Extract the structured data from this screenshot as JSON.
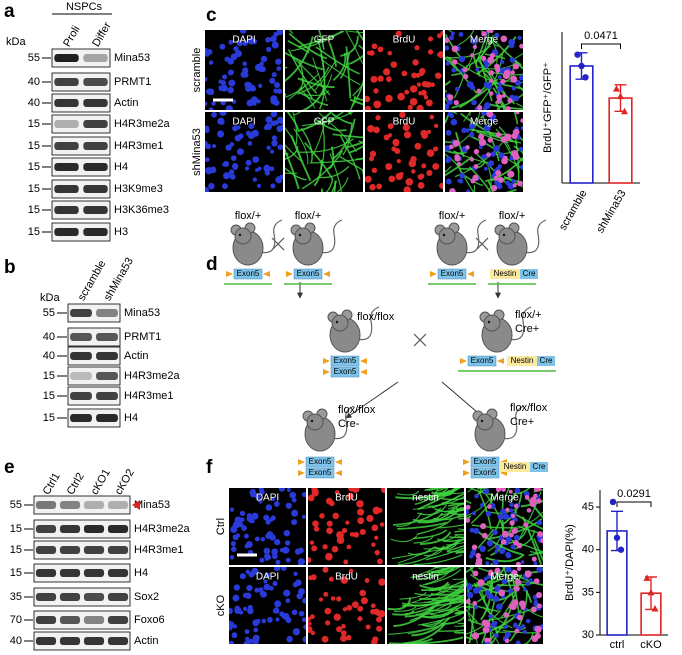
{
  "panels": {
    "a": {
      "letter": "a",
      "group": "NSPCs",
      "kda_label": "kDa",
      "lanes": [
        "Proli",
        "Differ"
      ],
      "rows": [
        {
          "kda": 55,
          "protein": "Mina53"
        },
        {
          "kda": 40,
          "protein": "PRMT1"
        },
        {
          "kda": 40,
          "protein": "Actin"
        },
        {
          "kda": 15,
          "protein": "H4R3me2a"
        },
        {
          "kda": 15,
          "protein": "H4R3me1"
        },
        {
          "kda": 15,
          "protein": "H4"
        },
        {
          "kda": 15,
          "protein": "H3K9me3"
        },
        {
          "kda": 15,
          "protein": "H3K36me3"
        },
        {
          "kda": 15,
          "protein": "H3"
        }
      ]
    },
    "b": {
      "letter": "b",
      "kda_label": "kDa",
      "lanes": [
        "scramble",
        "shMina53"
      ],
      "rows": [
        {
          "kda": 55,
          "protein": "Mina53"
        },
        {
          "kda": 40,
          "protein": "PRMT1"
        },
        {
          "kda": 40,
          "protein": "Actin"
        },
        {
          "kda": 15,
          "protein": "H4R3me2a"
        },
        {
          "kda": 15,
          "protein": "H4R3me1"
        },
        {
          "kda": 15,
          "protein": "H4"
        }
      ]
    },
    "c": {
      "letter": "c",
      "stains": [
        "DAPI",
        "GFP",
        "BrdU",
        "Merge"
      ],
      "conditions": [
        "scramble",
        "shMina53"
      ]
    },
    "d": {
      "letter": "d",
      "mice": [
        {
          "genotype": [
            "flox/+"
          ],
          "alleles": [
            [
              "Exon5"
            ]
          ]
        },
        {
          "genotype": [
            "flox/+"
          ],
          "alleles": [
            [
              "Exon5"
            ]
          ]
        },
        {
          "genotype": [
            "flox/+"
          ],
          "alleles": [
            [
              "Exon5"
            ]
          ]
        },
        {
          "genotype": [
            "flox/+"
          ],
          "alleles": [
            [
              "Nestin",
              "Cre"
            ]
          ]
        },
        {
          "genotype": [
            "flox/flox"
          ],
          "alleles": [
            [
              "Exon5"
            ],
            [
              "Exon5"
            ]
          ]
        },
        {
          "genotype": [
            "flox/+",
            "Cre+"
          ],
          "alleles": [
            [
              "Exon5"
            ],
            [
              "Nestin",
              "Cre"
            ]
          ]
        },
        {
          "genotype": [
            "flox/flox",
            "Cre-"
          ],
          "alleles": [
            [
              "Exon5"
            ],
            [
              "Exon5"
            ]
          ]
        },
        {
          "genotype": [
            "flox/flox",
            "Cre+"
          ],
          "alleles": [
            [
              "Exon5"
            ],
            [
              "Exon5"
            ],
            [
              "Nestin",
              "Cre"
            ]
          ]
        }
      ]
    },
    "e": {
      "letter": "e",
      "lanes": [
        "Ctrl1",
        "Ctrl2",
        "cKO1",
        "cKO2"
      ],
      "rows": [
        {
          "kda": 55,
          "protein": "Mina53"
        },
        {
          "kda": 15,
          "protein": "H4R3me2a"
        },
        {
          "kda": 15,
          "protein": "H4R3me1"
        },
        {
          "kda": 15,
          "protein": "H4"
        },
        {
          "kda": 35,
          "protein": "Sox2"
        },
        {
          "kda": 70,
          "protein": "Foxo6"
        },
        {
          "kda": 40,
          "protein": "Actin"
        }
      ]
    },
    "f": {
      "letter": "f",
      "stains": [
        "DAPI",
        "BrdU",
        "nestin",
        "Merge"
      ],
      "conditions": [
        "Ctrl",
        "cKO"
      ]
    }
  },
  "chart_data": [
    {
      "type": "bar",
      "ylabel": "BrdU⁺GFP⁺/GFP⁺",
      "categories": [
        "scramble",
        "shMina53"
      ],
      "values": [
        62,
        45
      ],
      "errors": [
        7,
        7
      ],
      "points": [
        [
          68,
          62,
          56
        ],
        [
          50,
          46,
          38
        ]
      ],
      "colors": [
        "#2323c8",
        "#e02424"
      ],
      "annotation": "0.0471",
      "ylim": [
        0,
        80
      ]
    },
    {
      "type": "bar",
      "ylabel": "BrdU⁺/DAPI(%)",
      "categories": [
        "ctrl",
        "cKO"
      ],
      "values": [
        42.2,
        34.9
      ],
      "errors": [
        2.3,
        1.9
      ],
      "points": [
        [
          45.6,
          41.4,
          40.0
        ],
        [
          36.7,
          35.0,
          33.1
        ]
      ],
      "colors": [
        "#2323c8",
        "#e02424"
      ],
      "annotation": "0.0291",
      "ylim": [
        30,
        47
      ],
      "yticks": [
        30,
        35,
        40,
        45
      ]
    }
  ]
}
